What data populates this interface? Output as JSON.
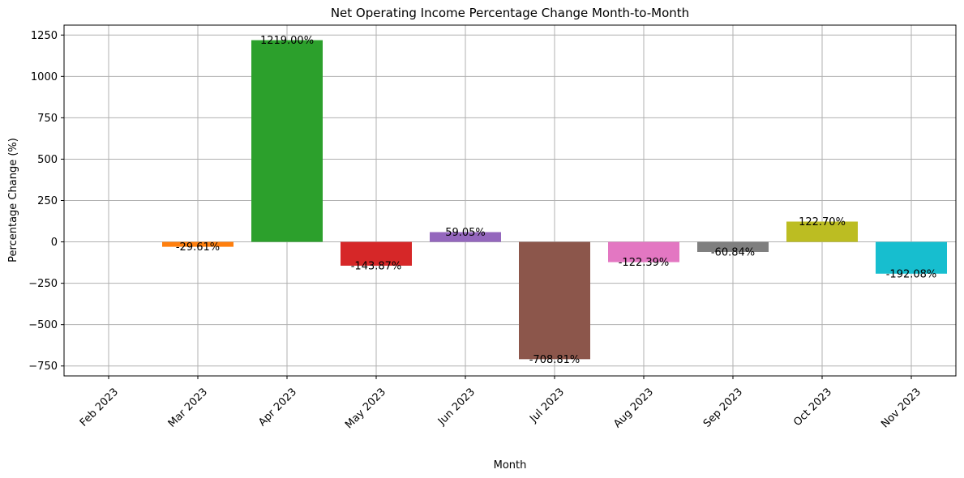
{
  "chart_data": {
    "type": "bar",
    "title": "Net Operating Income Percentage Change Month-to-Month",
    "xlabel": "Month",
    "ylabel": "Percentage Change (%)",
    "categories": [
      "Feb 2023",
      "Mar 2023",
      "Apr 2023",
      "May 2023",
      "Jun 2023",
      "Jul 2023",
      "Aug 2023",
      "Sep 2023",
      "Oct 2023",
      "Nov 2023"
    ],
    "values": [
      null,
      -29.61,
      1219.0,
      -143.87,
      59.05,
      -708.81,
      -122.39,
      -60.84,
      122.7,
      -192.08
    ],
    "data_labels": [
      "",
      "-29.61%",
      "1219.00%",
      "-143.87%",
      "59.05%",
      "-708.81%",
      "-122.39%",
      "-60.84%",
      "122.70%",
      "-192.08%"
    ],
    "colors": [
      "#1f77b4",
      "#ff7f0e",
      "#2ca02c",
      "#d62728",
      "#9467bd",
      "#8c564b",
      "#e377c2",
      "#7f7f7f",
      "#bcbd22",
      "#17becf"
    ],
    "ylim": [
      -810,
      1310
    ],
    "yticks": [
      -750,
      -500,
      -250,
      0,
      250,
      500,
      750,
      1000,
      1250
    ],
    "ytick_labels": [
      "−750",
      "−500",
      "−250",
      "0",
      "250",
      "500",
      "750",
      "1000",
      "1250"
    ],
    "grid": true,
    "legend": "none"
  }
}
